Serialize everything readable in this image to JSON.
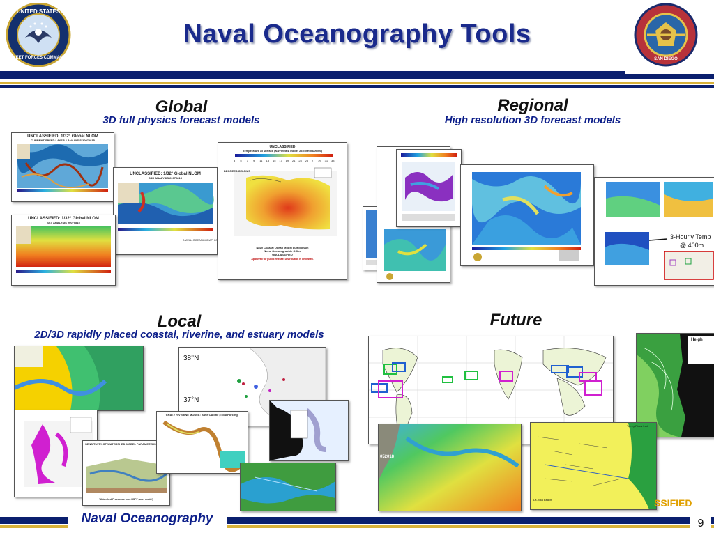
{
  "header": {
    "title": "Naval Oceanography Tools",
    "left_seal_text_top": "UNITED STATES",
    "left_seal_text_bottom": "FLEET FORCES COMMAND",
    "right_seal_text_bottom": "SAN DIEGO"
  },
  "sections": {
    "global": {
      "heading": "Global",
      "subheading": "3D full physics forecast models"
    },
    "regional": {
      "heading": "Regional",
      "subheading": "High resolution 3D forecast models"
    },
    "local": {
      "heading": "Local",
      "subheading": "2D/3D rapidly placed coastal, riverine, and estuary models"
    },
    "future": {
      "heading": "Future"
    }
  },
  "global_maps": {
    "map1_title": "UNCLASSIFIED: 1/32° Global NLOM",
    "map1_sub": "CURRENT/SPEED LAYER 1 ANALYSIS 20070815",
    "map2_title": "UNCLASSIFIED: 1/32° Global NLOM",
    "map2_sub": "SSH ANALYSIS 20070815",
    "map3_title": "UNCLASSIFIED: 1/32° Global NLOM",
    "map3_sub": "SST ANALYSIS 20070815",
    "office": "NAVAL OCEANOGRAPHIC OFFICE",
    "gulf_class": "UNCLASSIFIED",
    "gulf_title": "Temperature at surface (NAVO/NRL model 23 ITER 08/09/06)",
    "gulf_units": "DEGREES CELSIUS",
    "gulf_domain": "Navy Coastal Ocean Model gulf domain",
    "gulf_office": "Naval Oceanographic Office",
    "gulf_class_bottom": "UNCLASSIFIED",
    "gulf_release": "Approved for public release. Distribution is unlimited.",
    "gulf_scale": [
      "3",
      "5",
      "7",
      "9",
      "11",
      "13",
      "15",
      "17",
      "19",
      "21",
      "23",
      "25",
      "27",
      "29",
      "31",
      "33"
    ]
  },
  "regional_maps": {
    "annotation_line1": "3-Hourly Temp",
    "annotation_line2": "@ 400m"
  },
  "local_maps": {
    "lat1": "38°N",
    "lat2": "37°N",
    "watershed_title": "SENSITIVITY OF WATERSHED MODEL PARAMETERS",
    "riverine_title": "CHAI 2 RIVERINE MODEL: Base Outline (Tidal Forcing)",
    "watershed_foot": "Watershed Processes from HSPF (user model)"
  },
  "future_maps": {
    "label_height": "Heigh",
    "label_date": "052018",
    "label_pines": "Torrey Pines Inst",
    "label_jolla": "La Jolla Beach"
  },
  "footer": {
    "brand": "Naval Oceanography",
    "page_number": "9",
    "classification_fragment": "SSIFIED"
  },
  "colors": {
    "navy": "#0a1f6e",
    "gold": "#d8b23a",
    "title_blue": "#1a2a8c",
    "classification": "#e0a000"
  }
}
